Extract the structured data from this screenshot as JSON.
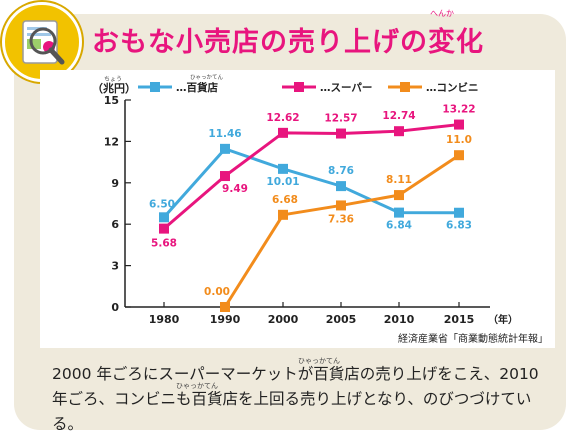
{
  "title": {
    "main": "おもな小売店の売り上げの変化",
    "ruby": "へんか"
  },
  "source": "経済産業省「商業動態統計年報」",
  "caption": {
    "line1": "2000 年ごろにスーパーマーケットが百貨店の売り上げをこえ、2010",
    "line2": "年ごろ、コンビニも百貨店を上回る売り上げとなり、のびつづけている。",
    "ruby_hyakkaten": "ひゃっかてん"
  },
  "chart_data": {
    "type": "line",
    "ylabel": "（兆円）",
    "ylabel_ruby": "ちょう",
    "xlabel": "（年）",
    "ylim": [
      0,
      15
    ],
    "yticks": [
      0,
      3,
      6,
      9,
      12,
      15
    ],
    "x": [
      1980,
      1990,
      2000,
      2005,
      2010,
      2015
    ],
    "grid": false,
    "legend_position": "top",
    "series": [
      {
        "name": "…百貨店",
        "ruby": "ひゃっかてん",
        "color": "#41a9dc",
        "values": [
          6.5,
          11.46,
          10.01,
          8.76,
          6.84,
          6.83
        ],
        "labels": [
          "6.50",
          "11.46",
          "10.01",
          "8.76",
          "6.84",
          "6.83"
        ]
      },
      {
        "name": "…スーパー",
        "color": "#e8157e",
        "values": [
          5.68,
          9.49,
          12.62,
          12.57,
          12.74,
          13.22
        ],
        "labels": [
          "5.68",
          "9.49",
          "12.62",
          "12.57",
          "12.74",
          "13.22"
        ]
      },
      {
        "name": "…コンビニ",
        "color": "#f28c1c",
        "values": [
          null,
          0.0,
          6.68,
          7.36,
          8.11,
          11.0
        ],
        "labels": [
          null,
          "0.00",
          "6.68",
          "7.36",
          "8.11",
          "11.0"
        ]
      }
    ]
  }
}
